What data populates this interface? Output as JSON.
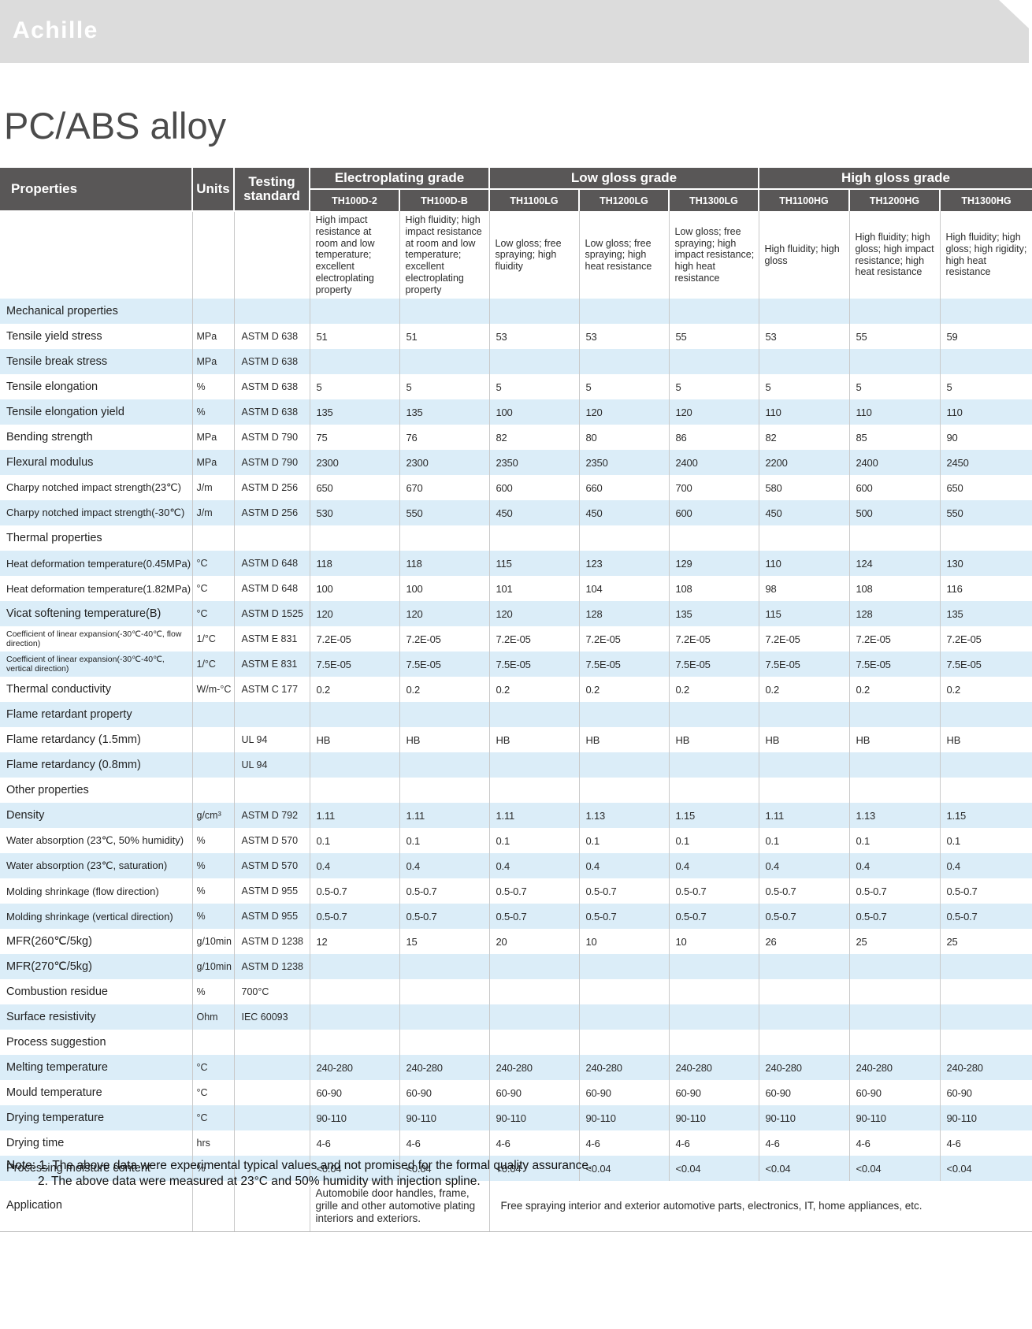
{
  "brand": {
    "logo_text": "Achille"
  },
  "page_title": "PC/ABS alloy",
  "table": {
    "corner_headers": {
      "properties": "Properties",
      "units": "Units",
      "testing_standard": "Testing standard"
    },
    "groups": [
      {
        "label": "Electroplating grade",
        "span": 2
      },
      {
        "label": "Low gloss grade",
        "span": 3
      },
      {
        "label": "High gloss grade",
        "span": 3
      }
    ],
    "products": [
      "TH100D-2",
      "TH100D-B",
      "TH1100LG",
      "TH1200LG",
      "TH1300LG",
      "TH1100HG",
      "TH1200HG",
      "TH1300HG"
    ],
    "descriptions": [
      "High impact resistance at room and low temperature; excellent electroplating property",
      "High fluidity; high impact resistance at room and low temperature; excellent electroplating property",
      "Low gloss; free spraying; high fluidity",
      "Low gloss; free spraying; high heat resistance",
      "Low gloss; free spraying; high impact resistance; high heat resistance",
      "High fluidity; high gloss",
      "High fluidity; high gloss; high impact resistance; high heat resistance",
      "High fluidity; high gloss; high rigidity; high heat resistance"
    ],
    "rows": [
      {
        "type": "section",
        "label": "Mechanical properties"
      },
      {
        "type": "data",
        "label": "Tensile yield stress",
        "unit": "MPa",
        "standard": "ASTM D 638",
        "values": [
          "51",
          "51",
          "53",
          "53",
          "55",
          "53",
          "55",
          "59"
        ]
      },
      {
        "type": "data",
        "label": "Tensile break stress",
        "unit": "MPa",
        "standard": "ASTM D 638",
        "values": [
          "",
          "",
          "",
          "",
          "",
          "",
          "",
          ""
        ]
      },
      {
        "type": "data",
        "label": "Tensile elongation",
        "unit": "%",
        "standard": "ASTM D 638",
        "values": [
          "5",
          "5",
          "5",
          "5",
          "5",
          "5",
          "5",
          "5"
        ]
      },
      {
        "type": "data",
        "label": "Tensile elongation yield",
        "unit": "%",
        "standard": "ASTM D 638",
        "values": [
          "135",
          "135",
          "100",
          "120",
          "120",
          "110",
          "110",
          "110"
        ]
      },
      {
        "type": "data",
        "label": "Bending strength",
        "unit": "MPa",
        "standard": "ASTM D 790",
        "values": [
          "75",
          "76",
          "82",
          "80",
          "86",
          "82",
          "85",
          "90"
        ]
      },
      {
        "type": "data",
        "label": "Flexural modulus",
        "unit": "MPa",
        "standard": "ASTM D 790",
        "values": [
          "2300",
          "2300",
          "2350",
          "2350",
          "2400",
          "2200",
          "2400",
          "2450"
        ]
      },
      {
        "type": "data",
        "label": "Charpy notched impact strength(23℃)",
        "unit": "J/m",
        "standard": "ASTM D 256",
        "values": [
          "650",
          "670",
          "600",
          "660",
          "700",
          "580",
          "600",
          "650"
        ]
      },
      {
        "type": "data",
        "label": "Charpy notched impact strength(-30℃)",
        "unit": "J/m",
        "standard": "ASTM D 256",
        "values": [
          "530",
          "550",
          "450",
          "450",
          "600",
          "450",
          "500",
          "550"
        ]
      },
      {
        "type": "section",
        "label": "Thermal properties"
      },
      {
        "type": "data",
        "label": "Heat deformation temperature(0.45MPa)",
        "unit": "°C",
        "standard": "ASTM D 648",
        "values": [
          "118",
          "118",
          "115",
          "123",
          "129",
          "110",
          "124",
          "130"
        ]
      },
      {
        "type": "data",
        "label": "Heat deformation temperature(1.82MPa)",
        "unit": "°C",
        "standard": "ASTM D 648",
        "values": [
          "100",
          "100",
          "101",
          "104",
          "108",
          "98",
          "108",
          "116"
        ]
      },
      {
        "type": "data",
        "label": "Vicat softening temperature(B)",
        "unit": "°C",
        "standard": "ASTM D 1525",
        "values": [
          "120",
          "120",
          "120",
          "128",
          "135",
          "115",
          "128",
          "135"
        ]
      },
      {
        "type": "data",
        "label": "Coefficient of linear expansion(-30℃-40℃, flow direction)",
        "unit": "1/°C",
        "standard": "ASTM E 831",
        "values": [
          "7.2E-05",
          "7.2E-05",
          "7.2E-05",
          "7.2E-05",
          "7.2E-05",
          "7.2E-05",
          "7.2E-05",
          "7.2E-05"
        ]
      },
      {
        "type": "data",
        "label": "Coefficient of linear expansion(-30℃-40℃, vertical direction)",
        "unit": "1/°C",
        "standard": "ASTM E 831",
        "values": [
          "7.5E-05",
          "7.5E-05",
          "7.5E-05",
          "7.5E-05",
          "7.5E-05",
          "7.5E-05",
          "7.5E-05",
          "7.5E-05"
        ]
      },
      {
        "type": "data",
        "label": "Thermal conductivity",
        "unit": "W/m-°C",
        "standard": "ASTM C 177",
        "values": [
          "0.2",
          "0.2",
          "0.2",
          "0.2",
          "0.2",
          "0.2",
          "0.2",
          "0.2"
        ]
      },
      {
        "type": "section",
        "label": "Flame retardant property"
      },
      {
        "type": "data",
        "label": "Flame retardancy (1.5mm)",
        "unit": "",
        "standard": "UL 94",
        "values": [
          "HB",
          "HB",
          "HB",
          "HB",
          "HB",
          "HB",
          "HB",
          "HB"
        ]
      },
      {
        "type": "data",
        "label": "Flame retardancy (0.8mm)",
        "unit": "",
        "standard": "UL 94",
        "values": [
          "",
          "",
          "",
          "",
          "",
          "",
          "",
          ""
        ]
      },
      {
        "type": "section",
        "label": "Other properties"
      },
      {
        "type": "data",
        "label": "Density",
        "unit": "g/cm³",
        "standard": "ASTM D 792",
        "values": [
          "1.11",
          "1.11",
          "1.11",
          "1.13",
          "1.15",
          "1.11",
          "1.13",
          "1.15"
        ]
      },
      {
        "type": "data",
        "label": "Water absorption (23℃, 50% humidity)",
        "unit": "%",
        "standard": "ASTM D 570",
        "values": [
          "0.1",
          "0.1",
          "0.1",
          "0.1",
          "0.1",
          "0.1",
          "0.1",
          "0.1"
        ]
      },
      {
        "type": "data",
        "label": "Water absorption (23℃, saturation)",
        "unit": "%",
        "standard": "ASTM D 570",
        "values": [
          "0.4",
          "0.4",
          "0.4",
          "0.4",
          "0.4",
          "0.4",
          "0.4",
          "0.4"
        ]
      },
      {
        "type": "data",
        "label": "Molding shrinkage (flow direction)",
        "unit": "%",
        "standard": "ASTM D 955",
        "values": [
          "0.5-0.7",
          "0.5-0.7",
          "0.5-0.7",
          "0.5-0.7",
          "0.5-0.7",
          "0.5-0.7",
          "0.5-0.7",
          "0.5-0.7"
        ]
      },
      {
        "type": "data",
        "label": "Molding shrinkage (vertical direction)",
        "unit": "%",
        "standard": "ASTM D 955",
        "values": [
          "0.5-0.7",
          "0.5-0.7",
          "0.5-0.7",
          "0.5-0.7",
          "0.5-0.7",
          "0.5-0.7",
          "0.5-0.7",
          "0.5-0.7"
        ]
      },
      {
        "type": "data",
        "label": "MFR(260℃/5kg)",
        "unit": "g/10min",
        "standard": "ASTM D 1238",
        "values": [
          "12",
          "15",
          "20",
          "10",
          "10",
          "26",
          "25",
          "25"
        ]
      },
      {
        "type": "data",
        "label": "MFR(270℃/5kg)",
        "unit": "g/10min",
        "standard": "ASTM D 1238",
        "values": [
          "",
          "",
          "",
          "",
          "",
          "",
          "",
          ""
        ]
      },
      {
        "type": "data",
        "label": "Combustion residue",
        "unit": "%",
        "standard": "700°C",
        "values": [
          "",
          "",
          "",
          "",
          "",
          "",
          "",
          ""
        ]
      },
      {
        "type": "data",
        "label": "Surface resistivity",
        "unit": "Ohm",
        "standard": "IEC 60093",
        "values": [
          "",
          "",
          "",
          "",
          "",
          "",
          "",
          ""
        ]
      },
      {
        "type": "section",
        "label": "Process suggestion"
      },
      {
        "type": "data",
        "label": "Melting temperature",
        "unit": "°C",
        "standard": "",
        "values": [
          "240-280",
          "240-280",
          "240-280",
          "240-280",
          "240-280",
          "240-280",
          "240-280",
          "240-280"
        ]
      },
      {
        "type": "data",
        "label": "Mould temperature",
        "unit": "°C",
        "standard": "",
        "values": [
          "60-90",
          "60-90",
          "60-90",
          "60-90",
          "60-90",
          "60-90",
          "60-90",
          "60-90"
        ]
      },
      {
        "type": "data",
        "label": "Drying temperature",
        "unit": "°C",
        "standard": "",
        "values": [
          "90-110",
          "90-110",
          "90-110",
          "90-110",
          "90-110",
          "90-110",
          "90-110",
          "90-110"
        ]
      },
      {
        "type": "data",
        "label": "Drying time",
        "unit": "hrs",
        "standard": "",
        "values": [
          "4-6",
          "4-6",
          "4-6",
          "4-6",
          "4-6",
          "4-6",
          "4-6",
          "4-6"
        ]
      },
      {
        "type": "data",
        "label": "Processing moisture content",
        "unit": "%",
        "standard": "",
        "values": [
          "<0.04",
          "<0.04",
          "<0.04",
          "<0.04",
          "<0.04",
          "<0.04",
          "<0.04",
          "<0.04"
        ]
      }
    ],
    "application": {
      "label": "Application",
      "electroplating_text": "Automobile door handles, frame, grille and other automotive plating interiors and exteriors.",
      "other_text": "Free spraying interior and exterior automotive parts, electronics, IT, home appliances, etc."
    }
  },
  "notes": {
    "line1": "Note: 1. The above data were experimental typical values and not promised for the formal quality assurance.",
    "line2": "2. The above data were measured at 23°C and 50% humidity with injection spline."
  },
  "colors": {
    "header_bg": "#595757",
    "stripe_blue": "#dbedf8",
    "banner_gray": "#dcdcdc",
    "grid_line": "#c9c9c9"
  }
}
